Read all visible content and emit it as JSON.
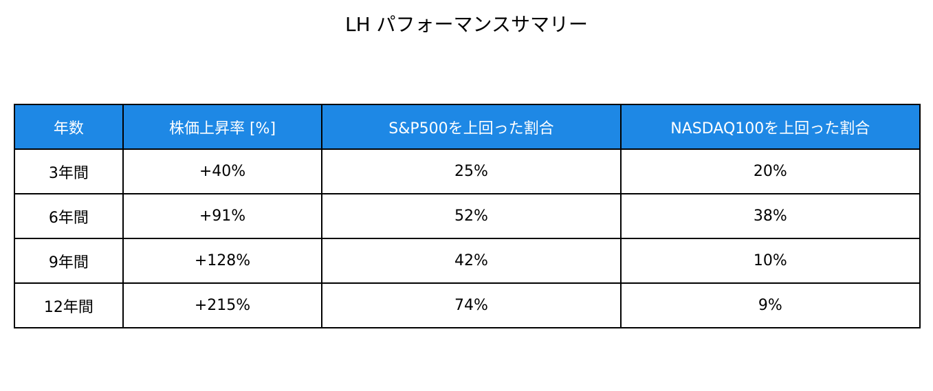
{
  "header": {
    "title": "LH パフォーマンスサマリー"
  },
  "table": {
    "columns": [
      "年数",
      "株価上昇率 [%]",
      "S&P500を上回った割合",
      "NASDAQ100を上回った割合"
    ],
    "rows": [
      [
        "3年間",
        "+40%",
        "25%",
        "20%"
      ],
      [
        "6年間",
        "+91%",
        "52%",
        "38%"
      ],
      [
        "9年間",
        "+128%",
        "42%",
        "10%"
      ],
      [
        "12年間",
        "+215%",
        "74%",
        "9%"
      ]
    ]
  }
}
